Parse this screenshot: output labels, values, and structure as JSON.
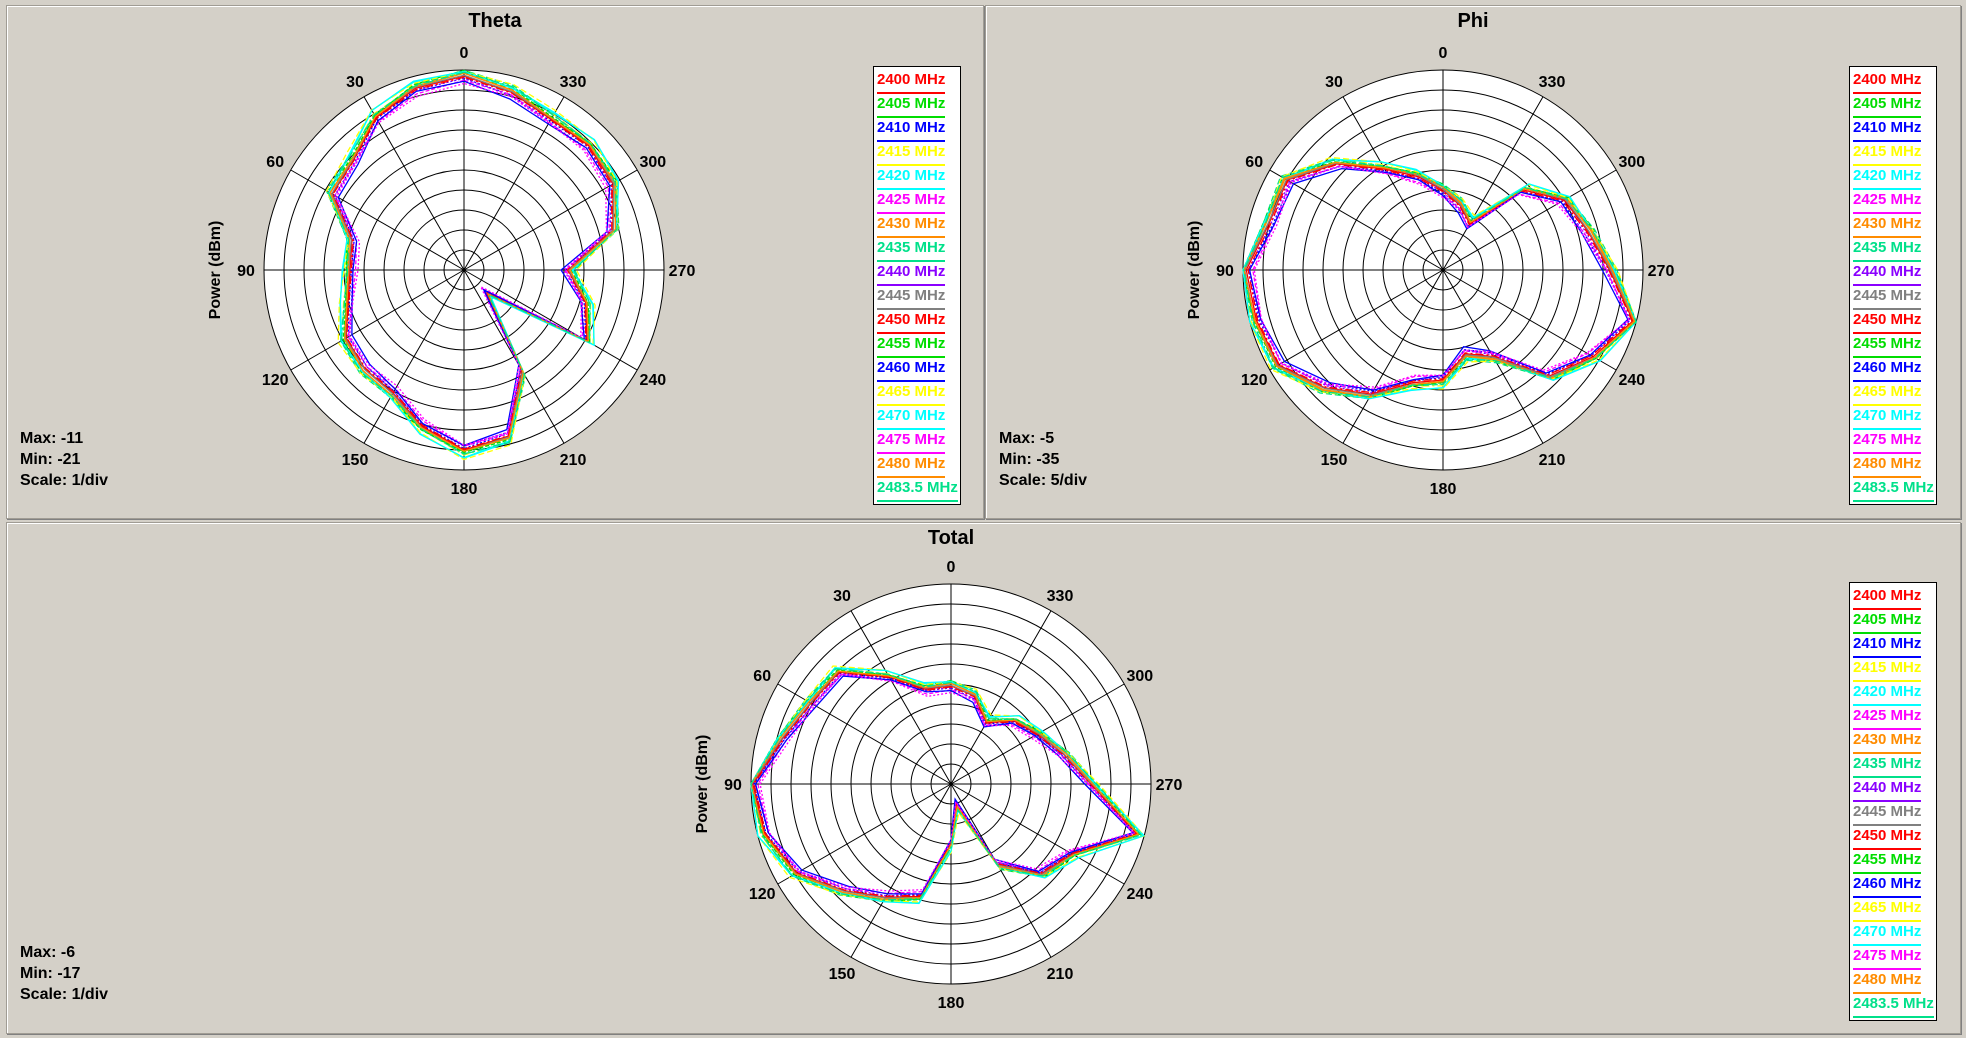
{
  "charts": {
    "theta": {
      "title": "Theta",
      "ylabel": "Power  (dBm)",
      "max_label": "Max: -11",
      "min_label": "Min: -21",
      "scale_label": "Scale: 1/div"
    },
    "phi": {
      "title": "Phi",
      "ylabel": "Power  (dBm)",
      "max_label": "Max: -5",
      "min_label": "Min: -35",
      "scale_label": "Scale: 5/div"
    },
    "total": {
      "title": "Total",
      "ylabel": "Power  (dBm)",
      "max_label": "Max: -6",
      "min_label": "Min: -17",
      "scale_label": "Scale: 1/div"
    }
  },
  "angle_labels": [
    "0",
    "30",
    "60",
    "90",
    "120",
    "150",
    "180",
    "210",
    "240",
    "270",
    "300",
    "330"
  ],
  "legend": [
    {
      "label": "2400 MHz",
      "color": "#ff0000"
    },
    {
      "label": "2405 MHz",
      "color": "#00dd00"
    },
    {
      "label": "2410 MHz",
      "color": "#0000ff"
    },
    {
      "label": "2415 MHz",
      "color": "#ffff00"
    },
    {
      "label": "2420 MHz",
      "color": "#00ffff"
    },
    {
      "label": "2425 MHz",
      "color": "#ff00ff"
    },
    {
      "label": "2430 MHz",
      "color": "#ff8c00"
    },
    {
      "label": "2435 MHz",
      "color": "#00e08a"
    },
    {
      "label": "2440 MHz",
      "color": "#8a00ff"
    },
    {
      "label": "2445 MHz",
      "color": "#808080"
    },
    {
      "label": "2450 MHz",
      "color": "#ff0000"
    },
    {
      "label": "2455 MHz",
      "color": "#00dd00"
    },
    {
      "label": "2460 MHz",
      "color": "#0000ff"
    },
    {
      "label": "2465 MHz",
      "color": "#ffff00"
    },
    {
      "label": "2470 MHz",
      "color": "#00ffff"
    },
    {
      "label": "2475 MHz",
      "color": "#ff00ff"
    },
    {
      "label": "2480 MHz",
      "color": "#ff8c00"
    },
    {
      "label": "2483.5 MHz",
      "color": "#00e08a"
    }
  ],
  "chart_data": [
    {
      "type": "polar",
      "title": "Theta",
      "ylabel": "Power  (dBm)",
      "rlim": [
        -21,
        -11
      ],
      "angle_direction": "counterclockwise, 0 at top",
      "angles_deg": [
        0,
        15,
        30,
        45,
        60,
        75,
        90,
        105,
        120,
        135,
        150,
        165,
        180,
        195,
        210,
        225,
        240,
        255,
        270,
        285,
        300,
        315,
        330,
        345
      ],
      "series_base": [
        -11.3,
        -11.6,
        -12.2,
        -13.2,
        -13.4,
        -15.2,
        -15.3,
        -15.0,
        -14.2,
        -14.0,
        -13.9,
        -12.9,
        -12.0,
        -12.4,
        -15.2,
        -19.4,
        -13.9,
        -14.7,
        -15.8,
        -13.3,
        -12.4,
        -12.2,
        -12.3,
        -11.8
      ],
      "series": [
        {
          "name": "2400 MHz",
          "offset": 0.0
        },
        {
          "name": "2405 MHz",
          "offset": 0.15
        },
        {
          "name": "2410 MHz",
          "offset": -0.1
        },
        {
          "name": "2415 MHz",
          "offset": 0.2
        },
        {
          "name": "2420 MHz",
          "offset": 0.3
        },
        {
          "name": "2425 MHz",
          "offset": -0.2
        },
        {
          "name": "2430 MHz",
          "offset": 0.1
        },
        {
          "name": "2435 MHz",
          "offset": 0.25
        },
        {
          "name": "2440 MHz",
          "offset": -0.15
        },
        {
          "name": "2445 MHz",
          "offset": 0.05
        },
        {
          "name": "2450 MHz",
          "offset": -0.05
        },
        {
          "name": "2455 MHz",
          "offset": 0.2
        },
        {
          "name": "2460 MHz",
          "offset": -0.25
        },
        {
          "name": "2465 MHz",
          "offset": 0.35
        },
        {
          "name": "2470 MHz",
          "offset": 0.3
        },
        {
          "name": "2475 MHz",
          "offset": -0.3
        },
        {
          "name": "2480 MHz",
          "offset": 0.1
        },
        {
          "name": "2483.5 MHz",
          "offset": 0.2
        }
      ]
    },
    {
      "type": "polar",
      "title": "Phi",
      "ylabel": "Power  (dBm)",
      "rlim": [
        -35,
        -5
      ],
      "angle_direction": "counterclockwise, 0 at top",
      "angles_deg": [
        0,
        15,
        30,
        45,
        60,
        75,
        90,
        105,
        120,
        135,
        150,
        165,
        180,
        195,
        210,
        225,
        240,
        255,
        270,
        285,
        300,
        315,
        330,
        345
      ],
      "series_base": [
        -23.0,
        -20.5,
        -17.5,
        -12.5,
        -8.0,
        -8.0,
        -5.5,
        -6.0,
        -6.5,
        -10.0,
        -13.5,
        -17.5,
        -18.5,
        -22.0,
        -20.0,
        -12.5,
        -9.0,
        -5.5,
        -10.0,
        -12.5,
        -14.0,
        -18.0,
        -27.0,
        -25.0
      ],
      "series": [
        {
          "name": "2400 MHz",
          "offset": 0.0
        },
        {
          "name": "2405 MHz",
          "offset": 0.5
        },
        {
          "name": "2410 MHz",
          "offset": -0.5
        },
        {
          "name": "2415 MHz",
          "offset": 0.7
        },
        {
          "name": "2420 MHz",
          "offset": 0.9
        },
        {
          "name": "2425 MHz",
          "offset": -0.7
        },
        {
          "name": "2430 MHz",
          "offset": 0.3
        },
        {
          "name": "2435 MHz",
          "offset": 0.8
        },
        {
          "name": "2440 MHz",
          "offset": -0.4
        },
        {
          "name": "2445 MHz",
          "offset": 0.2
        },
        {
          "name": "2450 MHz",
          "offset": -0.2
        },
        {
          "name": "2455 MHz",
          "offset": 0.6
        },
        {
          "name": "2460 MHz",
          "offset": -0.8
        },
        {
          "name": "2465 MHz",
          "offset": 1.0
        },
        {
          "name": "2470 MHz",
          "offset": 0.9
        },
        {
          "name": "2475 MHz",
          "offset": -0.9
        },
        {
          "name": "2480 MHz",
          "offset": 0.4
        },
        {
          "name": "2483.5 MHz",
          "offset": 0.6
        }
      ]
    },
    {
      "type": "polar",
      "title": "Total",
      "ylabel": "Power  (dBm)",
      "rlim": [
        -17,
        -6
      ],
      "angle_direction": "counterclockwise, 0 at top",
      "angles_deg": [
        0,
        15,
        30,
        45,
        60,
        75,
        90,
        105,
        120,
        135,
        150,
        165,
        180,
        195,
        210,
        225,
        240,
        255,
        270,
        285,
        300,
        315,
        330,
        345
      ],
      "series_base": [
        -11.6,
        -11.6,
        -10.2,
        -8.3,
        -8.1,
        -7.4,
        -6.1,
        -6.4,
        -7.2,
        -8.7,
        -9.8,
        -10.6,
        -13.7,
        -15.8,
        -11.9,
        -10.0,
        -9.3,
        -6.4,
        -9.3,
        -10.6,
        -11.5,
        -12.1,
        -13.1,
        -12.0
      ],
      "series": [
        {
          "name": "2400 MHz",
          "offset": 0.0
        },
        {
          "name": "2405 MHz",
          "offset": 0.15
        },
        {
          "name": "2410 MHz",
          "offset": -0.1
        },
        {
          "name": "2415 MHz",
          "offset": 0.2
        },
        {
          "name": "2420 MHz",
          "offset": 0.3
        },
        {
          "name": "2425 MHz",
          "offset": -0.2
        },
        {
          "name": "2430 MHz",
          "offset": 0.1
        },
        {
          "name": "2435 MHz",
          "offset": 0.25
        },
        {
          "name": "2440 MHz",
          "offset": -0.15
        },
        {
          "name": "2445 MHz",
          "offset": 0.05
        },
        {
          "name": "2450 MHz",
          "offset": -0.05
        },
        {
          "name": "2455 MHz",
          "offset": 0.2
        },
        {
          "name": "2460 MHz",
          "offset": -0.25
        },
        {
          "name": "2465 MHz",
          "offset": 0.35
        },
        {
          "name": "2470 MHz",
          "offset": 0.3
        },
        {
          "name": "2475 MHz",
          "offset": -0.3
        },
        {
          "name": "2480 MHz",
          "offset": 0.1
        },
        {
          "name": "2483.5 MHz",
          "offset": 0.2
        }
      ]
    }
  ]
}
